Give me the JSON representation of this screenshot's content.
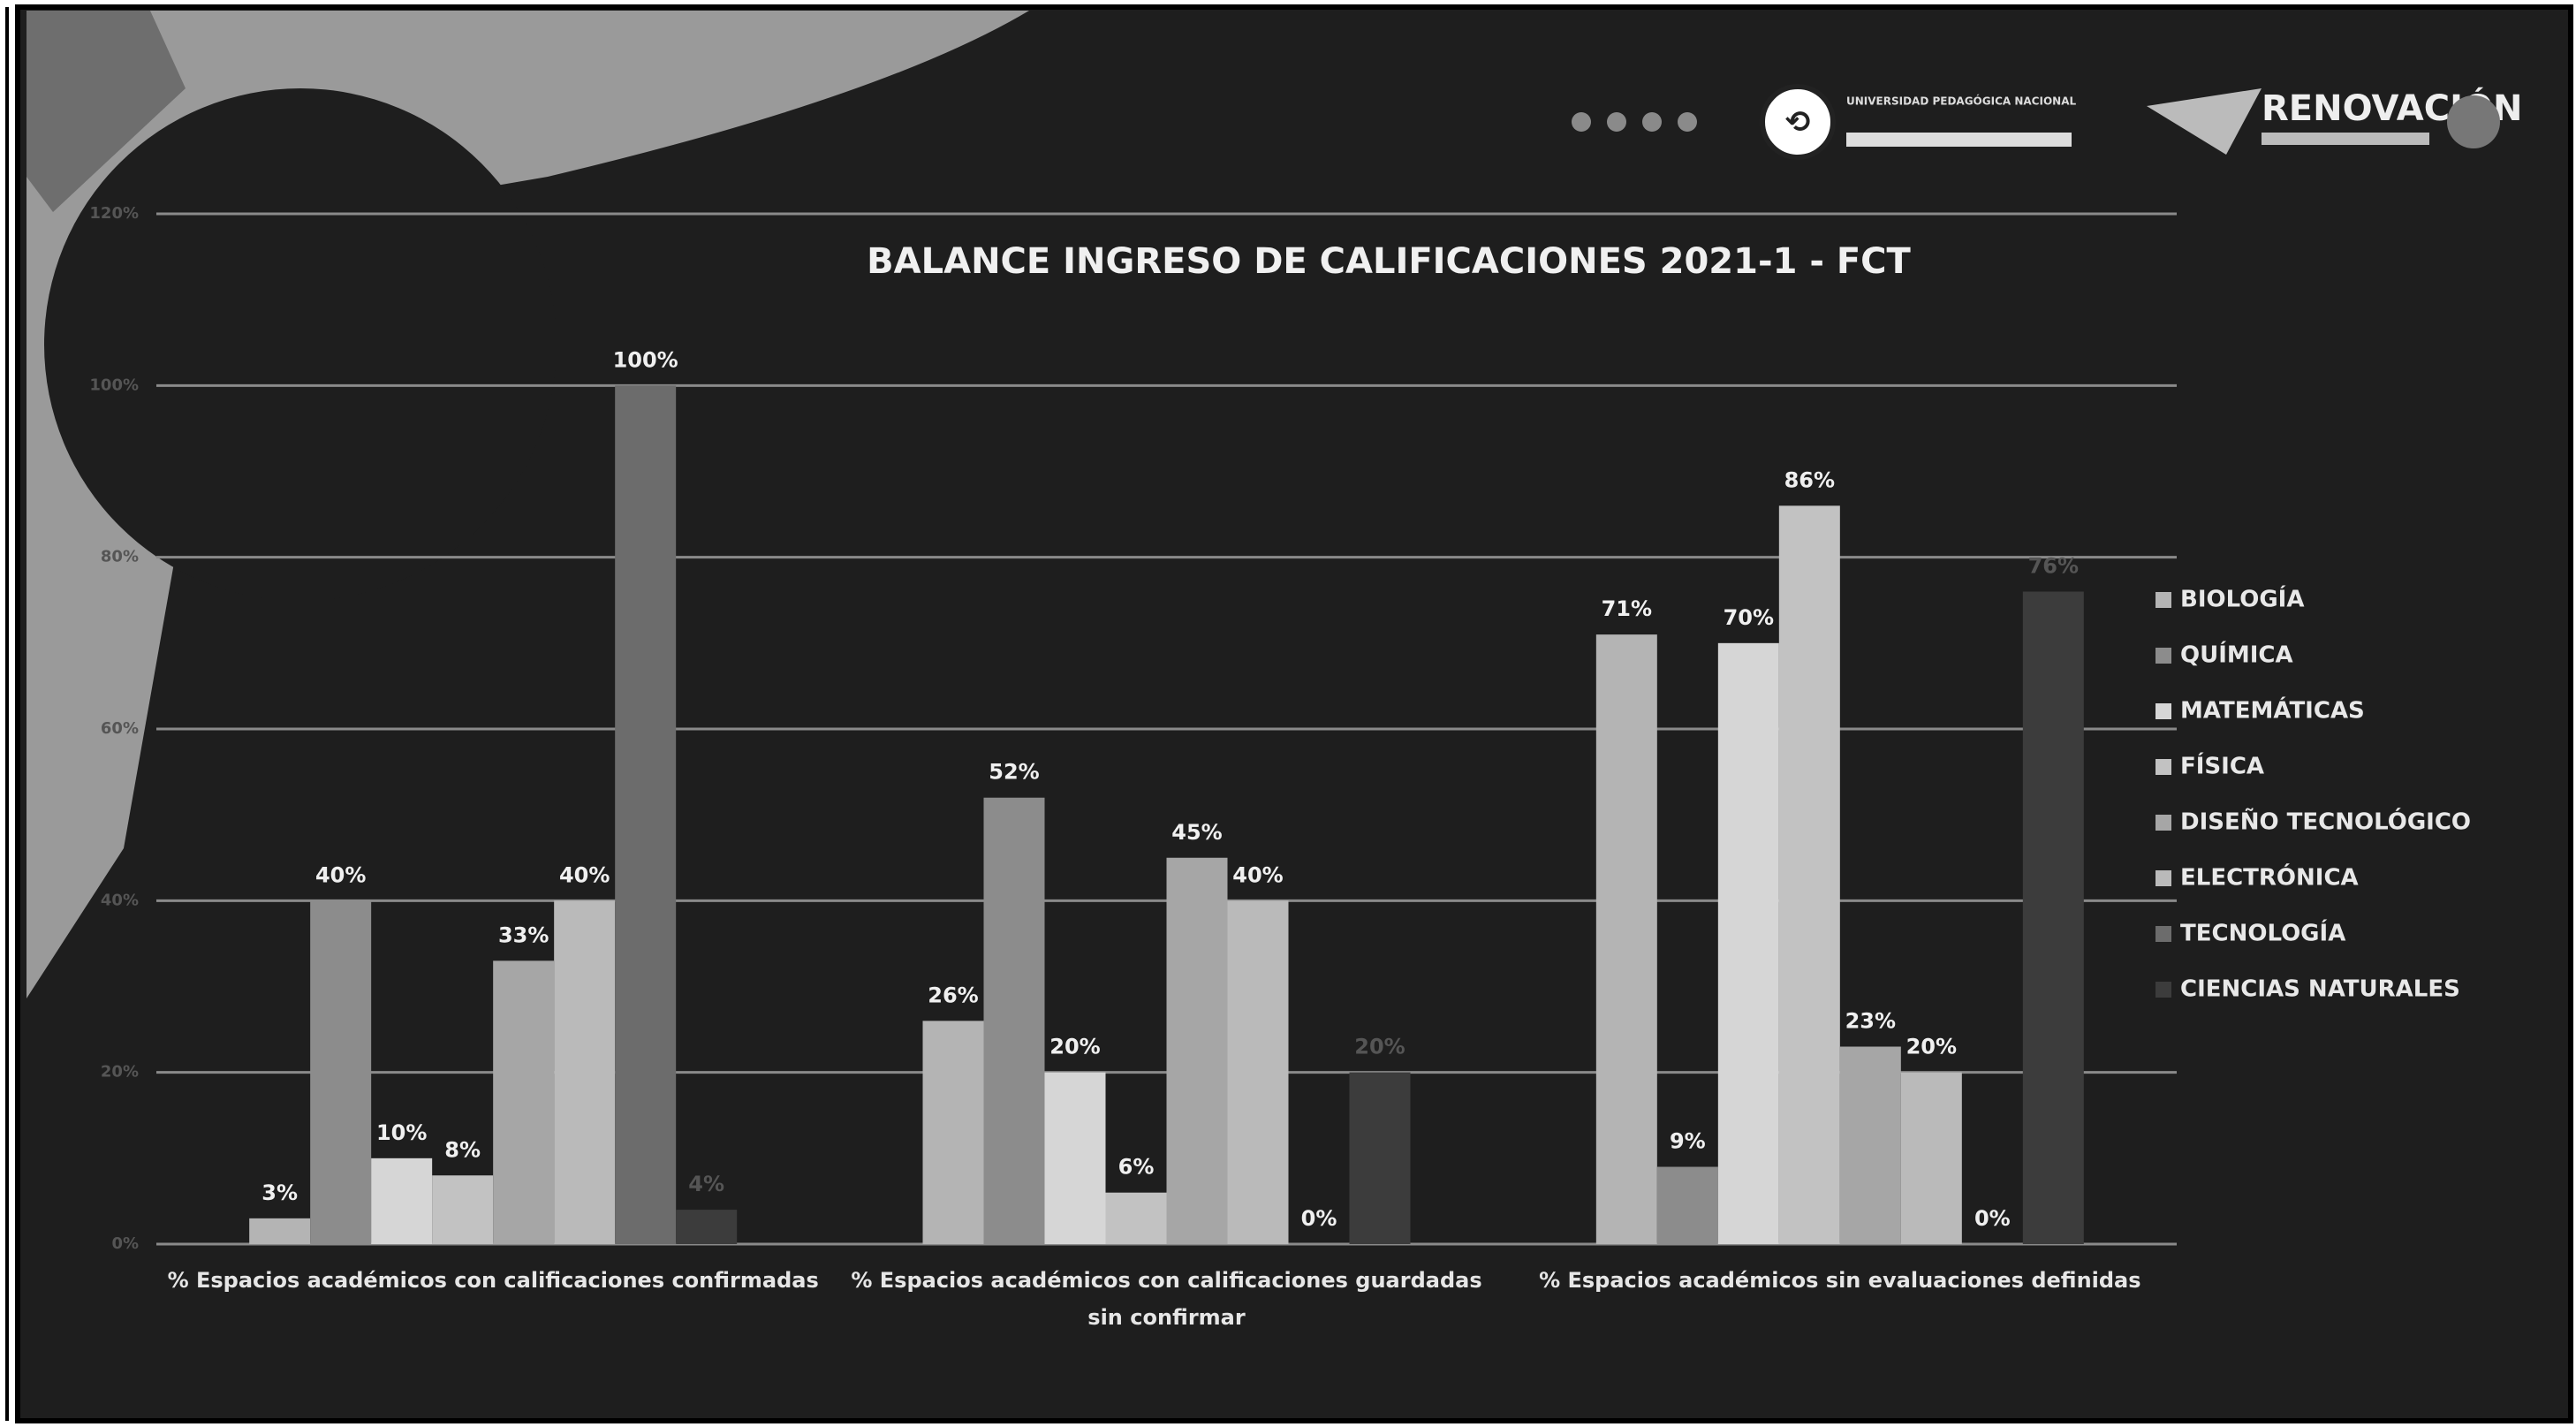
{
  "header": {
    "university": "UNIVERSIDAD PEDAGÓGICA NACIONAL",
    "brand": "RENOVACIÓN"
  },
  "chart_data": {
    "type": "bar",
    "title": "BALANCE INGRESO DE CALIFICACIONES 2021-1 -  FCT",
    "categories": [
      "% Espacios académicos con calificaciones confirmadas",
      "% Espacios académicos con calificaciones guardadas sin confirmar",
      "% Espacios académicos sin  evaluaciones definidas"
    ],
    "series": [
      {
        "name": "BIOLOGÍA",
        "color": "#b4b4b4",
        "values": [
          3,
          26,
          71
        ],
        "value_labels": [
          "3%",
          "26%",
          "71%"
        ]
      },
      {
        "name": "QUÍMICA",
        "color": "#8c8c8c",
        "values": [
          40,
          52,
          9
        ],
        "value_labels": [
          "40%",
          "52%",
          "9%"
        ]
      },
      {
        "name": "MATEMÁTICAS",
        "color": "#d6d6d6",
        "values": [
          10,
          20,
          70
        ],
        "value_labels": [
          "10%",
          "20%",
          "70%"
        ]
      },
      {
        "name": "FÍSICA",
        "color": "#c2c2c2",
        "values": [
          8,
          6,
          86
        ],
        "value_labels": [
          "8%",
          "6%",
          "86%"
        ]
      },
      {
        "name": "DISEÑO TECNOLÓGICO",
        "color": "#a6a6a6",
        "values": [
          33,
          45,
          23
        ],
        "value_labels": [
          "33%",
          "45%",
          "23%"
        ]
      },
      {
        "name": "ELECTRÓNICA",
        "color": "#bababa",
        "values": [
          40,
          40,
          20
        ],
        "value_labels": [
          "40%",
          "40%",
          "20%"
        ]
      },
      {
        "name": "TECNOLOGÍA",
        "color": "#6c6c6c",
        "values": [
          100,
          0,
          0
        ],
        "value_labels": [
          "100%",
          "0%",
          "0%"
        ]
      },
      {
        "name": "CIENCIAS NATURALES",
        "color": "#3c3c3c",
        "values": [
          4,
          20,
          76
        ],
        "value_labels": [
          "4%",
          "20%",
          "76%"
        ]
      }
    ],
    "ylim": [
      0,
      120
    ],
    "yticks": [
      {
        "value": 0,
        "label": "0%"
      },
      {
        "value": 20,
        "label": "20%"
      },
      {
        "value": 40,
        "label": "40%"
      },
      {
        "value": 60,
        "label": "60%"
      },
      {
        "value": 80,
        "label": "80%"
      },
      {
        "value": 100,
        "label": "100%"
      },
      {
        "value": 120,
        "label": "120%"
      }
    ],
    "grid": true,
    "legend": "right"
  }
}
